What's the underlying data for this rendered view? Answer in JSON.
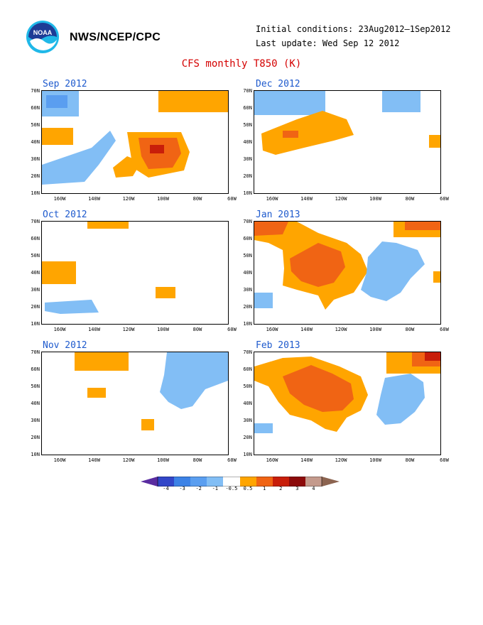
{
  "header": {
    "agency": "NWS/NCEP/CPC",
    "initial_conditions": "Initial conditions: 23Aug2012–1Sep2012",
    "last_update": "Last update: Wed Sep 12 2012",
    "title": "CFS monthly T850 (K)",
    "logo_icon": "noaa-logo-icon"
  },
  "axes": {
    "lat_labels": [
      "70N",
      "60N",
      "50N",
      "40N",
      "30N",
      "20N",
      "10N"
    ],
    "lon_labels": [
      "160W",
      "140W",
      "120W",
      "100W",
      "80W",
      "60W"
    ]
  },
  "panels": [
    {
      "id": "sep-2012",
      "title": "Sep 2012"
    },
    {
      "id": "dec-2012",
      "title": "Dec 2012"
    },
    {
      "id": "oct-2012",
      "title": "Oct 2012"
    },
    {
      "id": "jan-2013",
      "title": "Jan 2013"
    },
    {
      "id": "nov-2012",
      "title": "Nov 2012"
    },
    {
      "id": "feb-2013",
      "title": "Feb 2013"
    }
  ],
  "colorbar": {
    "labels": [
      "-4",
      "-3",
      "-2",
      "-1",
      "-0.5",
      "0.5",
      "1",
      "2",
      "3",
      "4"
    ],
    "colors": {
      "lt_m4": "#5a2ca0",
      "m4_m3": "#3246c8",
      "m3_m2": "#3c82e6",
      "m2_m1": "#5a9ef0",
      "m1_m05": "#82bef5",
      "neutral": "#ffffff",
      "p05_p1": "#ffa500",
      "p1_p2": "#f06414",
      "p2_p3": "#c81e0a",
      "p3_p4": "#8c0a0a",
      "gt_p4": "#c49a8c",
      "beyond": "#8c6450"
    }
  }
}
